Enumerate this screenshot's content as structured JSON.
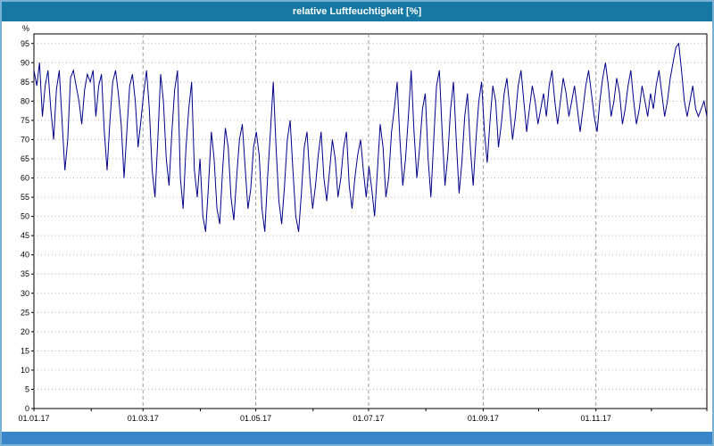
{
  "window": {
    "title": "relative Luftfeuchtigkeit [%]"
  },
  "colors": {
    "title_bar": "#1579a3",
    "frame": "#7ab0d4",
    "line": "#00008b",
    "grid_h": "#b4b4b4",
    "grid_v": "#9a9a9a",
    "axis": "#000000",
    "scrollbar": "#3a86c8",
    "plot_bg": "#ffffff"
  },
  "chart_data": {
    "type": "line",
    "title": "relative Luftfeuchtigkeit [%]",
    "xlabel": "",
    "ylabel": "%",
    "ylim": [
      0,
      97.5
    ],
    "ytick_step": 5,
    "ytick_max": 95,
    "grid": true,
    "legend": "none",
    "x_total_days": 364,
    "x_tick_labels": [
      "01.01.17",
      "01.03.17",
      "01.05.17",
      "01.07.17",
      "01.09.17",
      "01.11.17"
    ],
    "x_tick_days": [
      0,
      59,
      120,
      181,
      243,
      304
    ],
    "month_tick_days": [
      0,
      31,
      59,
      90,
      120,
      151,
      181,
      212,
      243,
      273,
      304,
      334,
      364
    ],
    "series": [
      {
        "name": "relative Luftfeuchtigkeit",
        "unit": "%",
        "color": "#00008b",
        "values": [
          88,
          84,
          90,
          76,
          84,
          88,
          78,
          70,
          83,
          88,
          75,
          62,
          70,
          86,
          88,
          84,
          80,
          74,
          83,
          87,
          85,
          88,
          76,
          84,
          87,
          72,
          62,
          75,
          85,
          88,
          82,
          74,
          60,
          72,
          84,
          87,
          80,
          68,
          75,
          82,
          88,
          78,
          62,
          55,
          70,
          87,
          80,
          65,
          58,
          72,
          83,
          88,
          60,
          52,
          68,
          78,
          85,
          62,
          55,
          65,
          50,
          46,
          58,
          72,
          65,
          52,
          48,
          62,
          73,
          68,
          55,
          49,
          60,
          70,
          74,
          63,
          52,
          57,
          68,
          72,
          66,
          52,
          46,
          60,
          72,
          85,
          68,
          54,
          48,
          58,
          70,
          75,
          62,
          50,
          46,
          56,
          68,
          72,
          60,
          52,
          58,
          66,
          72,
          60,
          54,
          62,
          70,
          65,
          55,
          60,
          68,
          72,
          58,
          52,
          60,
          66,
          70,
          62,
          55,
          63,
          57,
          50,
          62,
          74,
          68,
          55,
          60,
          72,
          78,
          85,
          70,
          58,
          65,
          76,
          88,
          72,
          60,
          68,
          78,
          82,
          65,
          55,
          70,
          84,
          88,
          72,
          58,
          66,
          78,
          85,
          70,
          56,
          64,
          76,
          82,
          68,
          58,
          70,
          80,
          85,
          72,
          64,
          75,
          84,
          80,
          68,
          74,
          82,
          86,
          78,
          70,
          76,
          84,
          88,
          80,
          72,
          78,
          84,
          80,
          74,
          78,
          82,
          76,
          84,
          88,
          80,
          74,
          80,
          86,
          82,
          76,
          80,
          84,
          78,
          72,
          78,
          84,
          88,
          82,
          76,
          72,
          80,
          86,
          90,
          84,
          76,
          80,
          86,
          82,
          74,
          78,
          84,
          88,
          80,
          74,
          78,
          84,
          80,
          76,
          82,
          78,
          84,
          88,
          82,
          76,
          80,
          86,
          90,
          94,
          95,
          88,
          80,
          76,
          80,
          84,
          78,
          76,
          78,
          80,
          76
        ]
      }
    ]
  }
}
